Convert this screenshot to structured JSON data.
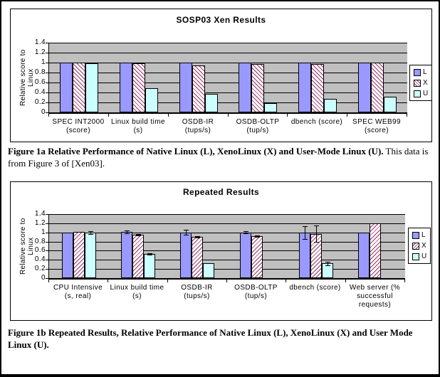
{
  "captions": {
    "fig1a_bold": "Figure 1a Relative Performance of Native Linux (L), XenoLinux (X) and User-Mode Linux (U).",
    "fig1a_rest": "This data is from Figure 3 of [Xen03].",
    "fig1b_bold": "Figure 1b Repeated Results, Relative Performance of Native Linux (L), XenoLinux (X) and User Mode Linux (U)."
  },
  "colors": {
    "series_L": "#9999FF",
    "series_U": "#CCFFFF",
    "hatch_X": "#993366",
    "plot_background": "#C0C0C0",
    "gridline": "#000000",
    "page_border": "#000000"
  },
  "chart_data": [
    {
      "type": "bar",
      "title": "SOSP03 Xen Results",
      "ylabel": "Relative score to Linux",
      "xlabel": "",
      "ylim": [
        0,
        1.4
      ],
      "ytick_values": [
        0,
        0.2,
        0.4,
        0.6,
        0.8,
        1,
        1.2,
        1.4
      ],
      "ytick_labels": [
        "0",
        "0.2",
        "0.4",
        "0.6",
        "0.8",
        "1",
        "1.2",
        "1.4"
      ],
      "grid": true,
      "legend_position": "right",
      "legend": [
        "L",
        "X",
        "U"
      ],
      "categories": [
        "SPEC INT2000 (score)",
        "Linux build time (s)",
        "OSDB-IR (tups/s)",
        "OSDB-OLTP (tup/s)",
        "dbench (score)",
        "SPEC WEB99 (score)"
      ],
      "category_lines": [
        [
          "SPEC INT2000",
          "(score)"
        ],
        [
          "Linux build time",
          "(s)"
        ],
        [
          "OSDB-IR (tups/s)"
        ],
        [
          "OSDB-OLTP",
          "(tup/s)"
        ],
        [
          "dbench (score)"
        ],
        [
          "SPEC WEB99",
          "(score)"
        ]
      ],
      "series": [
        {
          "name": "L",
          "style": "solid",
          "color": "#9999FF",
          "values": [
            1,
            1,
            1,
            1,
            1,
            1
          ]
        },
        {
          "name": "X",
          "style": "hatch",
          "hatch_direction": "backslash",
          "color": "#993366",
          "values": [
            1,
            0.99,
            0.94,
            0.97,
            0.97,
            1
          ]
        },
        {
          "name": "U",
          "style": "solid",
          "color": "#CCFFFF",
          "values": [
            0.99,
            0.48,
            0.37,
            0.19,
            0.27,
            0.32
          ]
        }
      ]
    },
    {
      "type": "bar",
      "title": "Repeated Results",
      "ylabel": "Relative score to Linux",
      "xlabel": "",
      "ylim": [
        0,
        1.4
      ],
      "ytick_values": [
        0,
        0.2,
        0.4,
        0.6,
        0.8,
        1,
        1.2,
        1.4
      ],
      "ytick_labels": [
        "0",
        "0.2",
        "0.4",
        "0.6",
        "0.8",
        "1",
        "1.2",
        "1.4"
      ],
      "grid": true,
      "legend_position": "right",
      "legend": [
        "L",
        "X",
        "U"
      ],
      "categories": [
        "CPU Intensive (s, real)",
        "Linux build time (s)",
        "OSDB-IR (tups/s)",
        "OSDB-OLTP (tup/s)",
        "dbench (score)",
        "Web server (% successful requests)"
      ],
      "category_lines": [
        [
          "CPU Intensive",
          "(s, real)"
        ],
        [
          "Linux build time",
          "(s)"
        ],
        [
          "OSDB-IR",
          "(tups/s)"
        ],
        [
          "OSDB-OLTP",
          "(tup/s)"
        ],
        [
          "dbench (score)"
        ],
        [
          "Web server (%",
          "successful",
          "requests)"
        ]
      ],
      "series": [
        {
          "name": "L",
          "style": "solid",
          "color": "#9999FF",
          "values": [
            1,
            1.01,
            1,
            1,
            1,
            1
          ],
          "errors": [
            null,
            0.03,
            0.05,
            0.02,
            0.14,
            null
          ]
        },
        {
          "name": "X",
          "style": "hatch",
          "hatch_direction": "slash",
          "color": "#993366",
          "values": [
            1.01,
            0.95,
            0.9,
            0.92,
            0.97,
            1.19
          ],
          "errors": [
            null,
            0.01,
            0.02,
            0.015,
            0.18,
            null
          ]
        },
        {
          "name": "U",
          "style": "solid",
          "color": "#CCFFFF",
          "values": [
            0.99,
            0.53,
            0.32,
            null,
            0.32,
            null
          ],
          "errors": [
            0.03,
            0.015,
            null,
            null,
            0.04,
            null
          ]
        }
      ]
    }
  ]
}
